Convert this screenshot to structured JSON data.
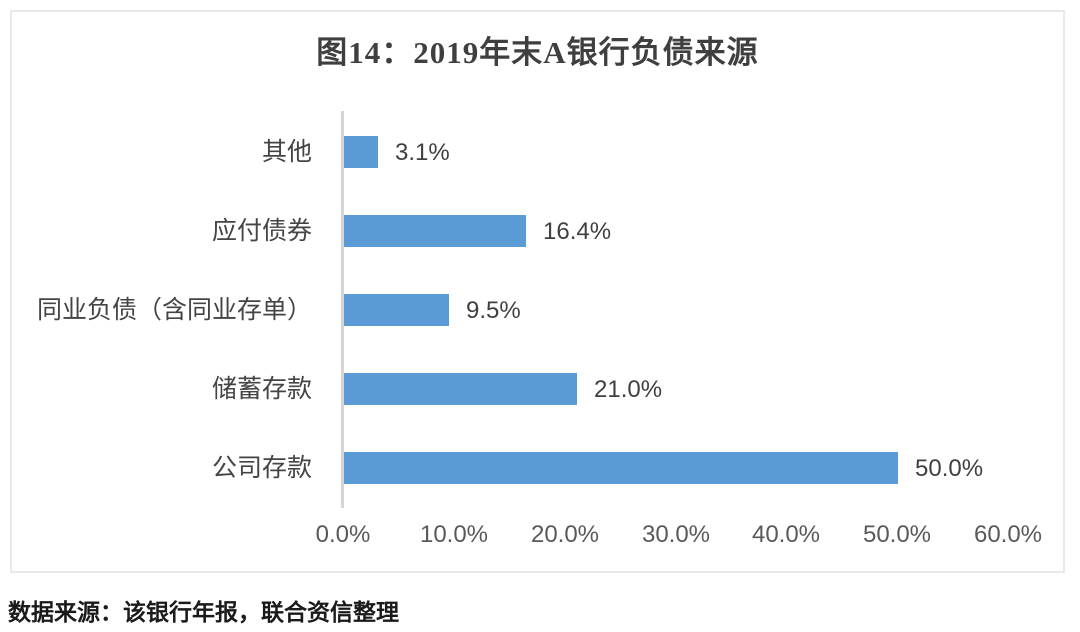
{
  "chart": {
    "border_color": "#e9e9e9",
    "background": "#ffffff"
  },
  "chart_data": {
    "type": "bar",
    "orientation": "horizontal",
    "title": "图14：2019年末A银行负债来源",
    "categories": [
      "其他",
      "应付债券",
      "同业负债（含同业存单）",
      "储蓄存款",
      "公司存款"
    ],
    "values": [
      3.1,
      16.4,
      9.5,
      21.0,
      50.0
    ],
    "data_labels": [
      "3.1%",
      "16.4%",
      "9.5%",
      "21.0%",
      "50.0%"
    ],
    "x_ticks": [
      "0.0%",
      "10.0%",
      "20.0%",
      "30.0%",
      "40.0%",
      "50.0%",
      "60.0%"
    ],
    "x_tick_values": [
      0,
      10,
      20,
      30,
      40,
      50,
      60
    ],
    "xlim": [
      0,
      60
    ],
    "xlabel": "",
    "ylabel": "",
    "grid": false,
    "legend": false,
    "bar_color": "#5b9bd5",
    "source": "数据来源：该银行年报，联合资信整理"
  }
}
